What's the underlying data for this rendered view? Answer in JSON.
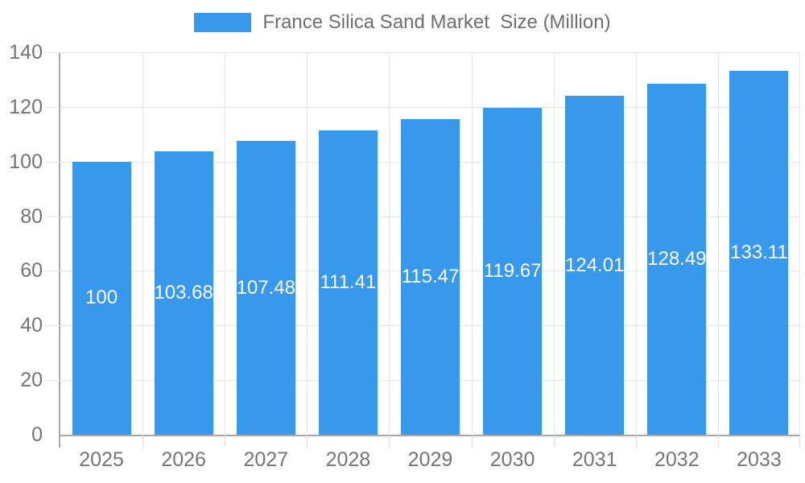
{
  "legend": {
    "label": "France Silica Sand Market  Size (Million)"
  },
  "chart_data": {
    "type": "bar",
    "title": "France Silica Sand Market Size (Million)",
    "categories": [
      "2025",
      "2026",
      "2027",
      "2028",
      "2029",
      "2030",
      "2031",
      "2032",
      "2033"
    ],
    "series": [
      {
        "name": "France Silica Sand Market Size (Million)",
        "values": [
          100,
          103.68,
          107.48,
          111.41,
          115.47,
          119.67,
          124.01,
          128.49,
          133.11
        ],
        "value_labels": [
          "100",
          "103.68",
          "107.48",
          "111.41",
          "115.47",
          "119.67",
          "124.01",
          "128.49",
          "133.11"
        ]
      }
    ],
    "xlabel": "",
    "ylabel": "",
    "ylim": [
      0,
      140
    ],
    "y_ticks": [
      0,
      20,
      40,
      60,
      80,
      100,
      120,
      140
    ],
    "grid": true,
    "legend_position": "top",
    "colors": {
      "bar": "#3898ec",
      "gridline": "#e7e7e7",
      "axis": "#a8a8a8",
      "tick_text": "#757575",
      "legend_text": "#6e6e6e",
      "value_label_text": "#ffffff"
    }
  }
}
